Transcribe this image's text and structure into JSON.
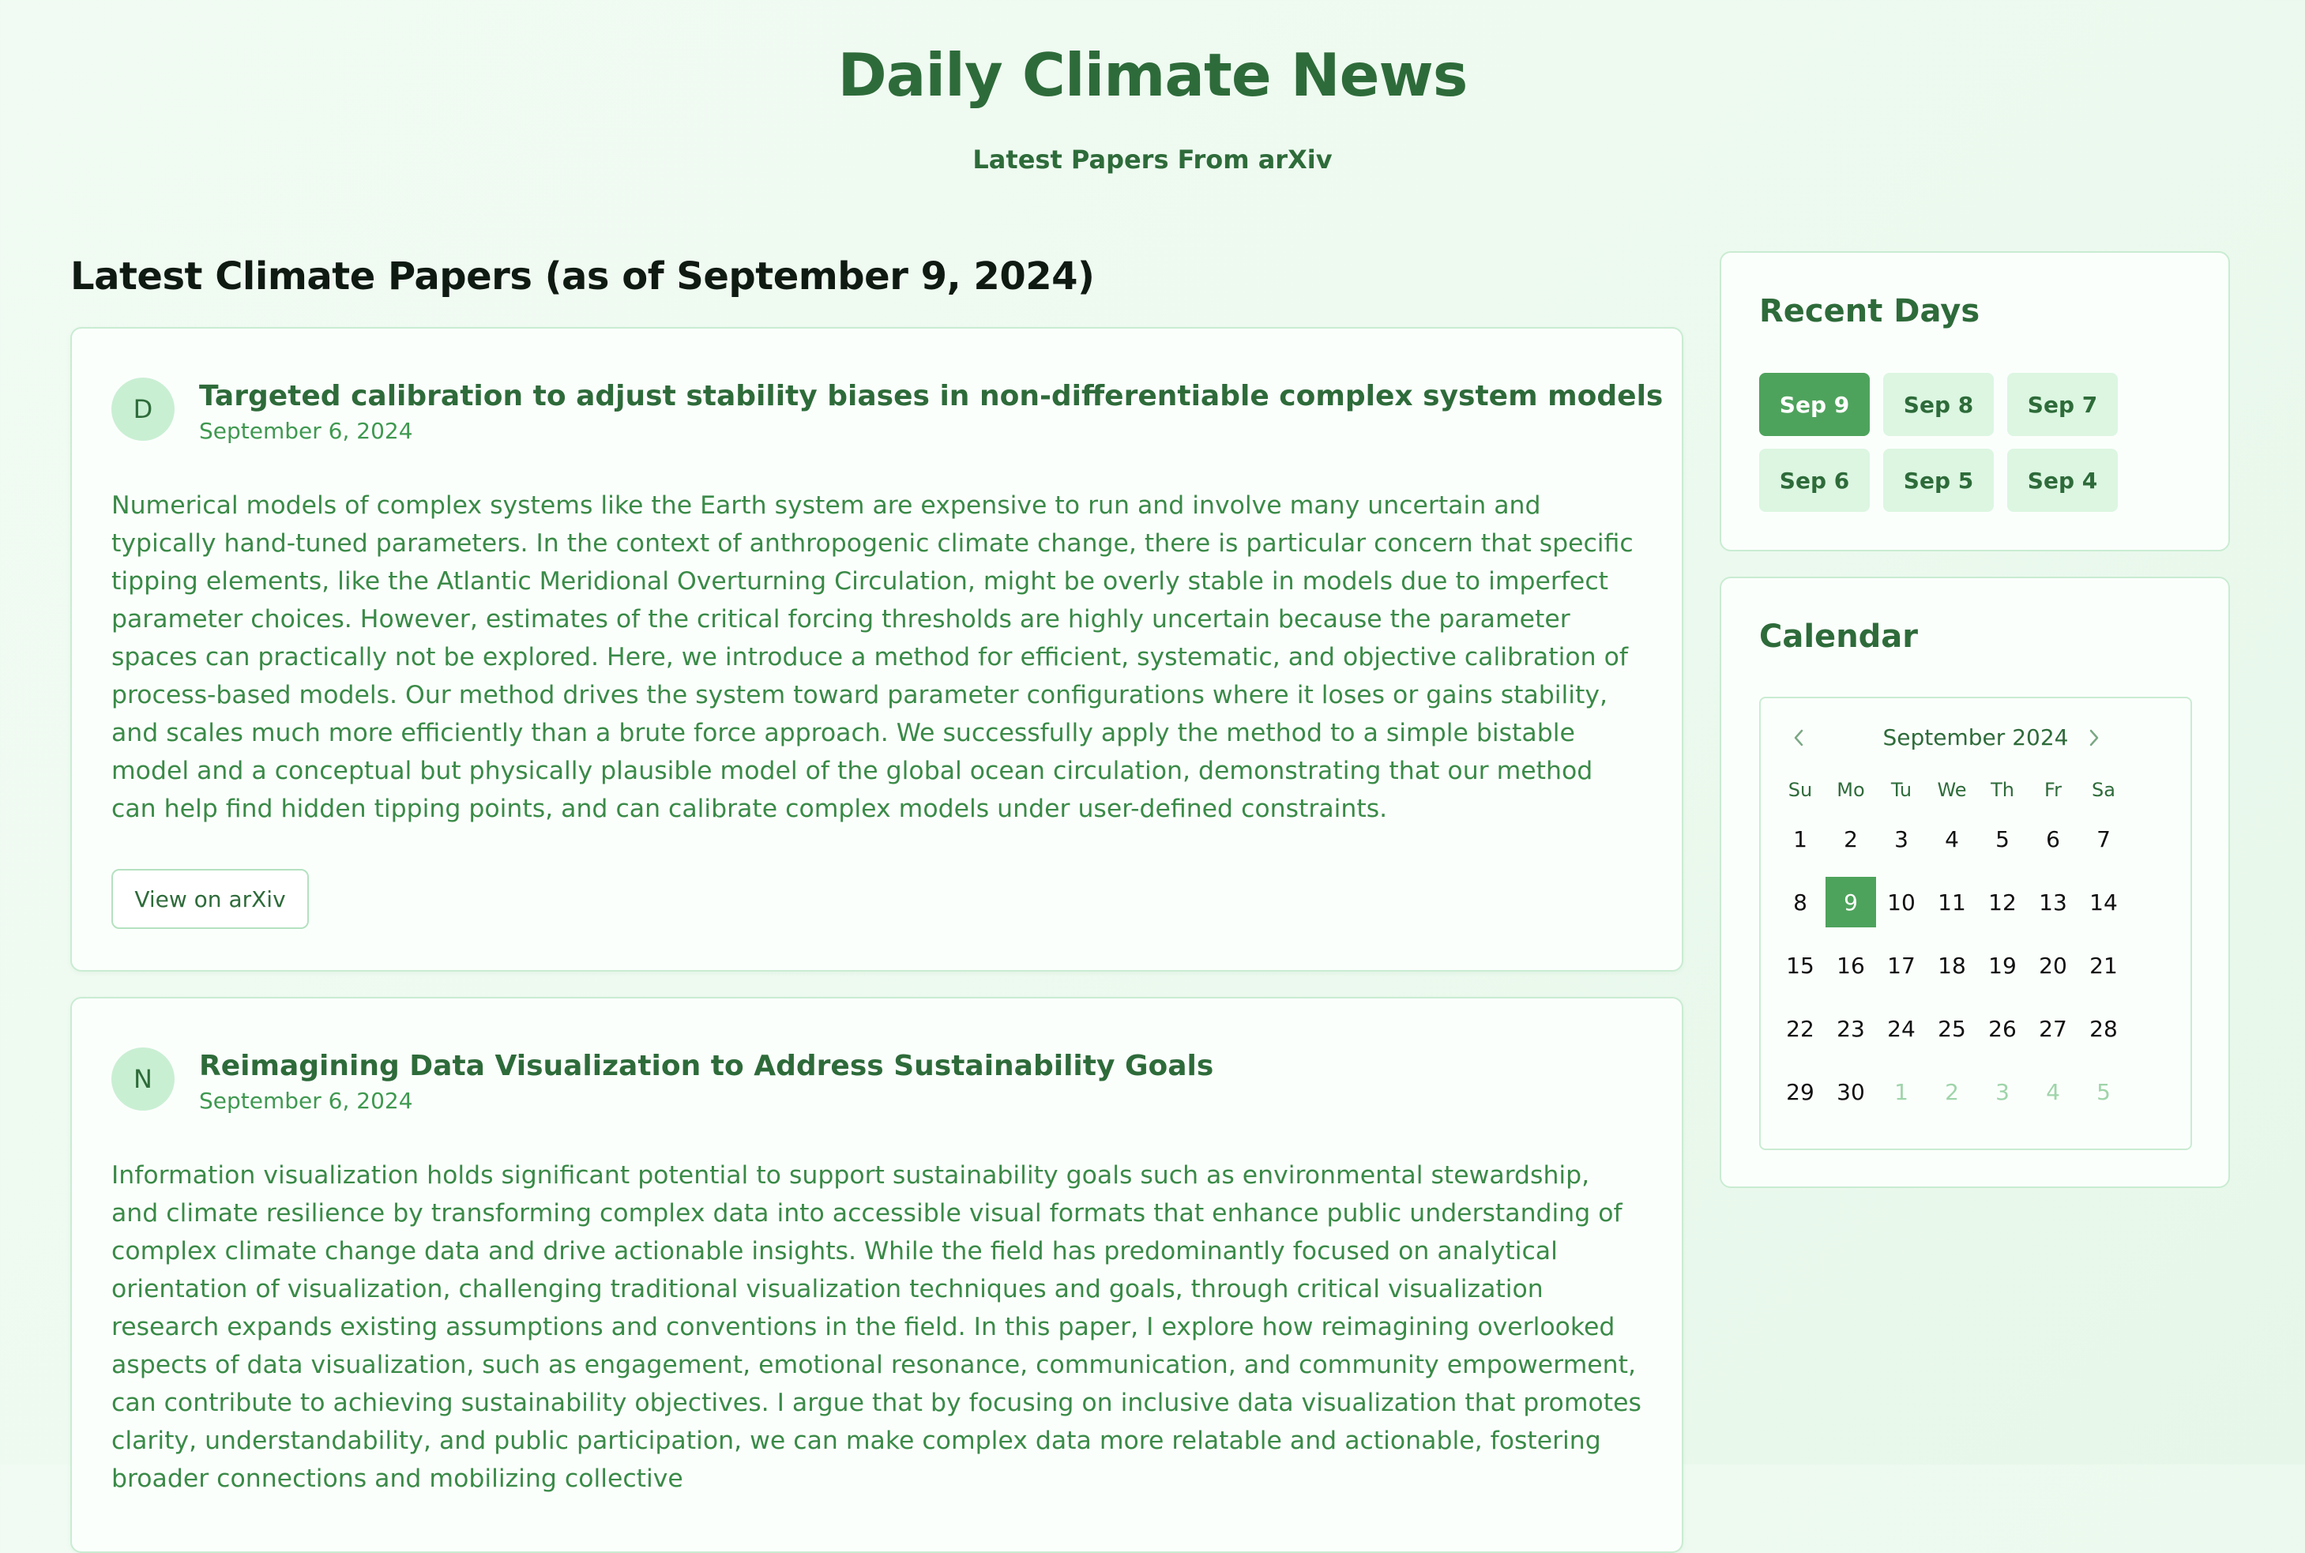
{
  "site": {
    "title": "Daily Climate News",
    "subtitle": "Latest Papers From arXiv"
  },
  "main": {
    "section_title": "Latest Climate Papers (as of September 9, 2024)",
    "papers": [
      {
        "initial": "D",
        "title": "Targeted calibration to adjust stability biases in non-differentiable complex system models",
        "date": "September 6, 2024",
        "abstract": "Numerical models of complex systems like the Earth system are expensive to run and involve many uncertain and typically hand-tuned parameters. In the context of anthropogenic climate change, there is particular concern that specific tipping elements, like the Atlantic Meridional Overturning Circulation, might be overly stable in models due to imperfect parameter choices. However, estimates of the critical forcing thresholds are highly uncertain because the parameter spaces can practically not be explored. Here, we introduce a method for efficient, systematic, and objective calibration of process-based models. Our method drives the system toward parameter configurations where it loses or gains stability, and scales much more efficiently than a brute force approach. We successfully apply the method to a simple bistable model and a conceptual but physically plausible model of the global ocean circulation, demonstrating that our method can help find hidden tipping points, and can calibrate complex models under user-defined constraints.",
        "button_label": "View on arXiv"
      },
      {
        "initial": "N",
        "title": "Reimagining Data Visualization to Address Sustainability Goals",
        "date": "September 6, 2024",
        "abstract": "Information visualization holds significant potential to support sustainability goals such as environmental stewardship, and climate resilience by transforming complex data into accessible visual formats that enhance public understanding of complex climate change data and drive actionable insights. While the field has predominantly focused on analytical orientation of visualization, challenging traditional visualization techniques and goals, through critical visualization research expands existing assumptions and conventions in the field. In this paper, I explore how reimagining overlooked aspects of data visualization, such as engagement, emotional resonance, communication, and community empowerment, can contribute to achieving sustainability objectives. I argue that by focusing on inclusive data visualization that promotes clarity, understandability, and public participation, we can make complex data more relatable and actionable, fostering broader connections and mobilizing collective"
      }
    ]
  },
  "sidebar": {
    "recent_days": {
      "title": "Recent Days",
      "days": [
        "Sep 9",
        "Sep 8",
        "Sep 7",
        "Sep 6",
        "Sep 5",
        "Sep 4"
      ],
      "active": "Sep 9"
    },
    "calendar": {
      "title": "Calendar",
      "month_label": "September 2024",
      "prev_icon": "chevron-left-icon",
      "next_icon": "chevron-right-icon",
      "weekdays": [
        "Su",
        "Mo",
        "Tu",
        "We",
        "Th",
        "Fr",
        "Sa"
      ],
      "weeks": [
        [
          "1",
          "2",
          "3",
          "4",
          "5",
          "6",
          "7"
        ],
        [
          "8",
          "9",
          "10",
          "11",
          "12",
          "13",
          "14"
        ],
        [
          "15",
          "16",
          "17",
          "18",
          "19",
          "20",
          "21"
        ],
        [
          "22",
          "23",
          "24",
          "25",
          "26",
          "27",
          "28"
        ],
        [
          "29",
          "30",
          "1",
          "2",
          "3",
          "4",
          "5"
        ]
      ],
      "selected_day": "9",
      "next_month_days_in_last_week": 5
    }
  },
  "colors": {
    "accent": "#4ea35c",
    "title_green": "#2e6b3a",
    "text_green": "#3a8a47",
    "chip_bg": "#dcf6e1",
    "border": "#c9ecd2"
  }
}
